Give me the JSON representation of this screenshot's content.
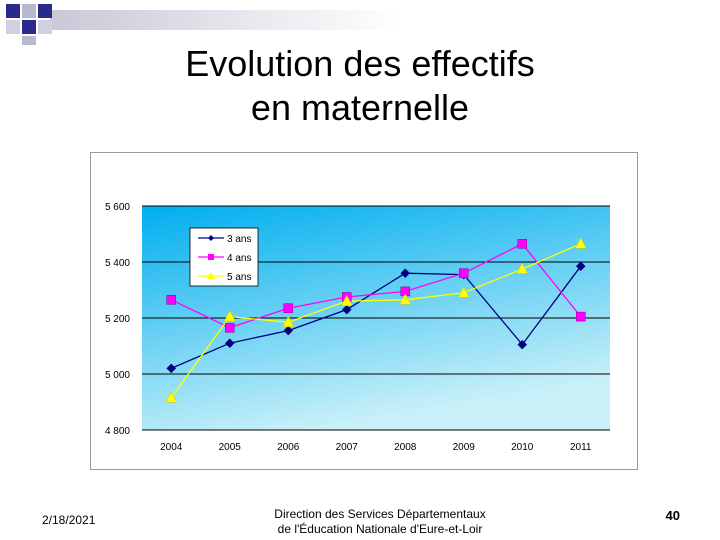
{
  "slide": {
    "title_line1": "Evolution des effectifs",
    "title_line2": "en maternelle",
    "footer_date": "2/18/2021",
    "footer_line1": "Direction des Services Départementaux",
    "footer_line2": "de l'Éducation Nationale d'Eure-et-Loir",
    "page_number": "40"
  },
  "chart_data": {
    "type": "line",
    "categories": [
      "2004",
      "2005",
      "2006",
      "2007",
      "2008",
      "2009",
      "2010",
      "2011"
    ],
    "ylim": [
      4800,
      5600
    ],
    "yticks": [
      4800,
      5000,
      5200,
      5400,
      5600
    ],
    "ytick_labels": [
      "4 800",
      "5 000",
      "5 200",
      "5 400",
      "5 600"
    ],
    "grid": true,
    "legend_position": "top-left",
    "series": [
      {
        "name": "3 ans",
        "color": "#000080",
        "marker": "diamond",
        "values": [
          5020,
          5110,
          5155,
          5230,
          5360,
          5355,
          5105,
          5385
        ]
      },
      {
        "name": "4 ans",
        "color": "#ff00ff",
        "marker": "square",
        "values": [
          5265,
          5165,
          5235,
          5275,
          5295,
          5360,
          5465,
          5205
        ]
      },
      {
        "name": "5 ans",
        "color": "#ffff00",
        "marker": "triangle",
        "values": [
          4915,
          5205,
          5185,
          5260,
          5265,
          5290,
          5375,
          5465
        ]
      }
    ],
    "colors": {
      "plot_top": "#00aeef",
      "plot_bottom": "#c8f0f8",
      "grid": "#000000"
    }
  }
}
